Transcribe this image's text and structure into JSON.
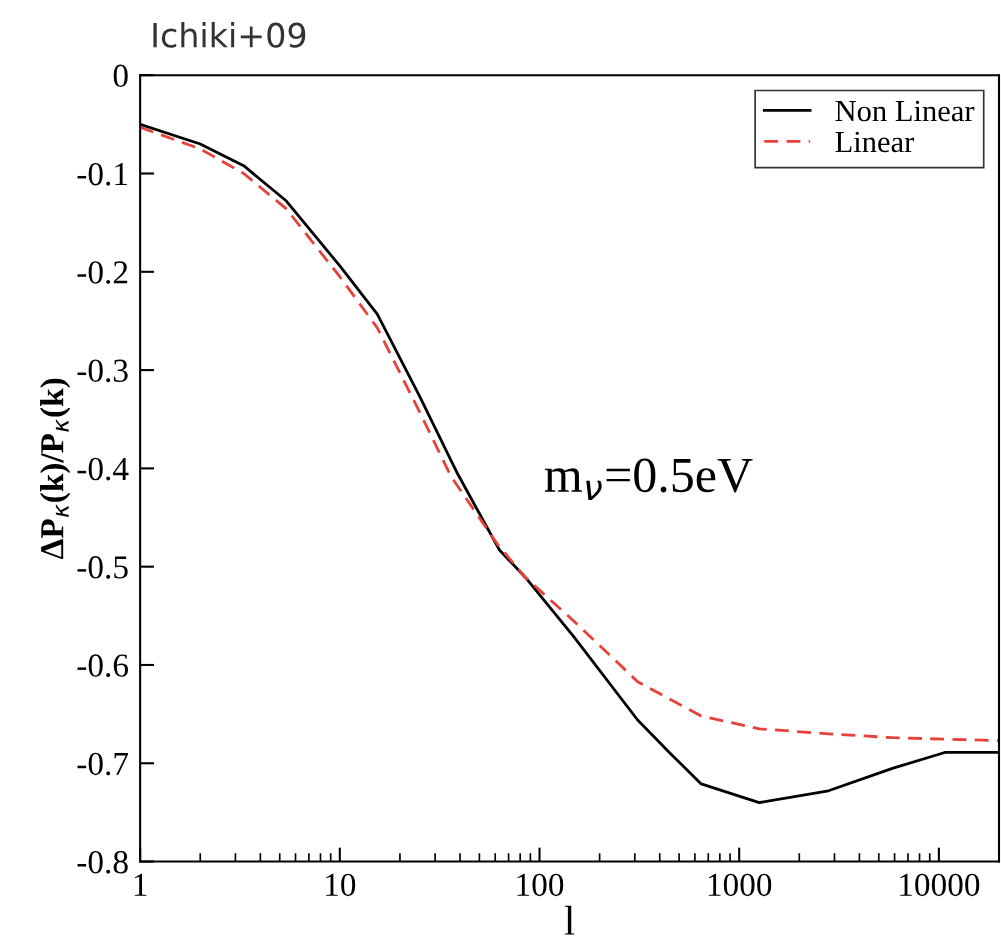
{
  "chart_data": {
    "type": "line",
    "title": "Ichiki+09",
    "xlabel": "l",
    "ylabel": "ΔP$_{κ}$(k)/P$_{κ}$(k)",
    "annotations": [
      "m$_{ν}$=0.5eV"
    ],
    "log": "x",
    "xlim": [
      1,
      20000
    ],
    "xticks": [
      1,
      10,
      100,
      1000,
      10000
    ],
    "ylim": [
      -0.8,
      0
    ],
    "yticks": [
      {
        "value": -0.8,
        "label": "-0.8"
      },
      {
        "value": -0.7,
        "label": "-0.7"
      },
      {
        "value": -0.6,
        "label": "-0.6"
      },
      {
        "value": -0.5,
        "label": "-0.5"
      },
      {
        "value": -0.4,
        "label": "-0.4"
      },
      {
        "value": -0.3,
        "label": "-0.3"
      },
      {
        "value": -0.2,
        "label": "-0.2"
      },
      {
        "value": -0.1,
        "label": "-0.1"
      },
      {
        "value": 0,
        "label": "0"
      }
    ],
    "grid": false,
    "legend": "top right",
    "series": [
      {
        "name": "Non Linear",
        "color": "#000000",
        "line_style": "solid",
        "x": [
          1,
          2,
          3.3,
          5.4,
          10,
          15.4,
          25,
          39,
          63,
          85,
          148,
          310,
          447,
          645,
          1260,
          2800,
          5900,
          10700,
          20000
        ],
        "values": [
          -0.05,
          -0.07,
          -0.092,
          -0.128,
          -0.194,
          -0.243,
          -0.326,
          -0.406,
          -0.483,
          -0.511,
          -0.571,
          -0.656,
          -0.689,
          -0.721,
          -0.74,
          -0.728,
          -0.705,
          -0.689,
          -0.689
        ]
      },
      {
        "name": "Linear",
        "color": "#e8413c",
        "line_style": "dashed",
        "x": [
          1,
          2,
          3.3,
          5.4,
          10,
          15.4,
          25,
          36,
          62,
          85,
          148,
          310,
          645,
          1260,
          2800,
          5900,
          20000
        ],
        "values": [
          -0.053,
          -0.075,
          -0.1,
          -0.136,
          -0.205,
          -0.257,
          -0.342,
          -0.408,
          -0.478,
          -0.511,
          -0.555,
          -0.617,
          -0.652,
          -0.665,
          -0.67,
          -0.674,
          -0.677
        ]
      }
    ]
  }
}
